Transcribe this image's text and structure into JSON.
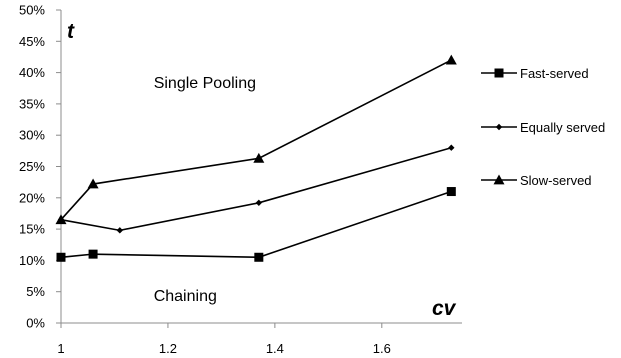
{
  "chart_data": {
    "type": "line",
    "title": "",
    "xlabel": "cv",
    "ylabel": "t",
    "xlim": [
      1,
      1.75
    ],
    "ylim": [
      0,
      0.5
    ],
    "x_ticks": [
      1,
      1.2,
      1.4,
      1.6
    ],
    "x_tick_labels": [
      "1",
      "1.2",
      "1.4",
      "1.6"
    ],
    "y_ticks": [
      0,
      0.05,
      0.1,
      0.15,
      0.2,
      0.25,
      0.3,
      0.35,
      0.4,
      0.45,
      0.5
    ],
    "y_tick_labels": [
      "0%",
      "5%",
      "10%",
      "15%",
      "20%",
      "25%",
      "30%",
      "35%",
      "40%",
      "45%",
      "50%"
    ],
    "grid": false,
    "legend_position": "right",
    "annotations": [
      {
        "key": "single",
        "text": "Single Pooling",
        "x": 1.28,
        "y": 0.385
      },
      {
        "key": "chaining",
        "text": "Chaining",
        "x": 1.28,
        "y": 0.045
      }
    ],
    "series": [
      {
        "name": "Fast-served",
        "marker": "square",
        "color": "#000000",
        "x": [
          1,
          1.06,
          1.37,
          1.73
        ],
        "y": [
          0.105,
          0.11,
          0.105,
          0.21
        ]
      },
      {
        "name": "Equally served",
        "marker": "diamond",
        "color": "#000000",
        "x": [
          1,
          1.11,
          1.37,
          1.73
        ],
        "y": [
          0.165,
          0.148,
          0.192,
          0.28
        ]
      },
      {
        "name": "Slow-served",
        "marker": "triangle",
        "color": "#000000",
        "x": [
          1,
          1.06,
          1.37,
          1.73
        ],
        "y": [
          0.165,
          0.222,
          0.263,
          0.42
        ]
      }
    ]
  }
}
